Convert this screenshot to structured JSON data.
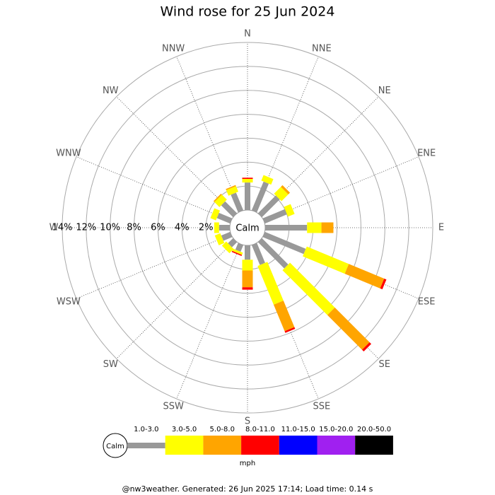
{
  "chart_data": {
    "type": "windrose",
    "title": "Wind rose for 25 Jun 2024",
    "categories": [
      "N",
      "NNE",
      "NE",
      "ENE",
      "E",
      "ESE",
      "SE",
      "SSE",
      "S",
      "SSW",
      "SW",
      "WSW",
      "W",
      "WNW",
      "NW",
      "NNW"
    ],
    "series": [
      {
        "name": "1.0-3.0",
        "color": "#999999",
        "values": [
          2.3,
          2.6,
          2.1,
          2.0,
          3.5,
          3.7,
          3.1,
          1.8,
          1.2,
          0.6,
          0.6,
          0.8,
          0.9,
          1.2,
          1.4,
          1.6
        ]
      },
      {
        "name": "3.0-5.0",
        "color": "#ffff00",
        "values": [
          0.3,
          0.5,
          0.8,
          0.6,
          1.2,
          3.8,
          5.3,
          3.5,
          0.9,
          0.2,
          0.5,
          0.5,
          0.4,
          0.5,
          0.6,
          0.5
        ]
      },
      {
        "name": "5.0-8.0",
        "color": "#ffa500",
        "values": [
          0,
          0,
          0.2,
          0,
          1.0,
          3.2,
          4.1,
          2.4,
          1.4,
          0,
          0,
          0,
          0,
          0,
          0.1,
          0.1
        ]
      },
      {
        "name": "8.0-11.0",
        "color": "#ff0000",
        "values": [
          0.1,
          0,
          0,
          0,
          0,
          0.2,
          0.2,
          0.15,
          0.2,
          0.1,
          0,
          0,
          0,
          0,
          0,
          0
        ]
      },
      {
        "name": "11.0-15.0",
        "color": "#0000ff",
        "values": [
          0,
          0,
          0,
          0,
          0,
          0,
          0,
          0,
          0,
          0,
          0,
          0,
          0,
          0,
          0,
          0
        ]
      },
      {
        "name": "15.0-20.0",
        "color": "#a020f0",
        "values": [
          0,
          0,
          0,
          0,
          0,
          0,
          0,
          0,
          0,
          0,
          0,
          0,
          0,
          0,
          0,
          0
        ]
      },
      {
        "name": "20.0-50.0",
        "color": "#000000",
        "values": [
          0,
          0,
          0,
          0,
          0,
          0,
          0,
          0,
          0,
          0,
          0,
          0,
          0,
          0,
          0,
          0
        ]
      }
    ],
    "rlim": [
      0,
      14
    ],
    "rticks": [
      {
        "value": 2,
        "label": "2%"
      },
      {
        "value": 4,
        "label": "4%"
      },
      {
        "value": 6,
        "label": "6%"
      },
      {
        "value": 8,
        "label": "8%"
      },
      {
        "value": 10,
        "label": "10%"
      },
      {
        "value": 12,
        "label": "12%"
      },
      {
        "value": 14,
        "label": "14%"
      }
    ],
    "calm_label": "Calm",
    "unit": "mph",
    "footer": "@nw3weather. Generated: 26 Jun 2025 17:14; Load time: 0.14 s"
  }
}
